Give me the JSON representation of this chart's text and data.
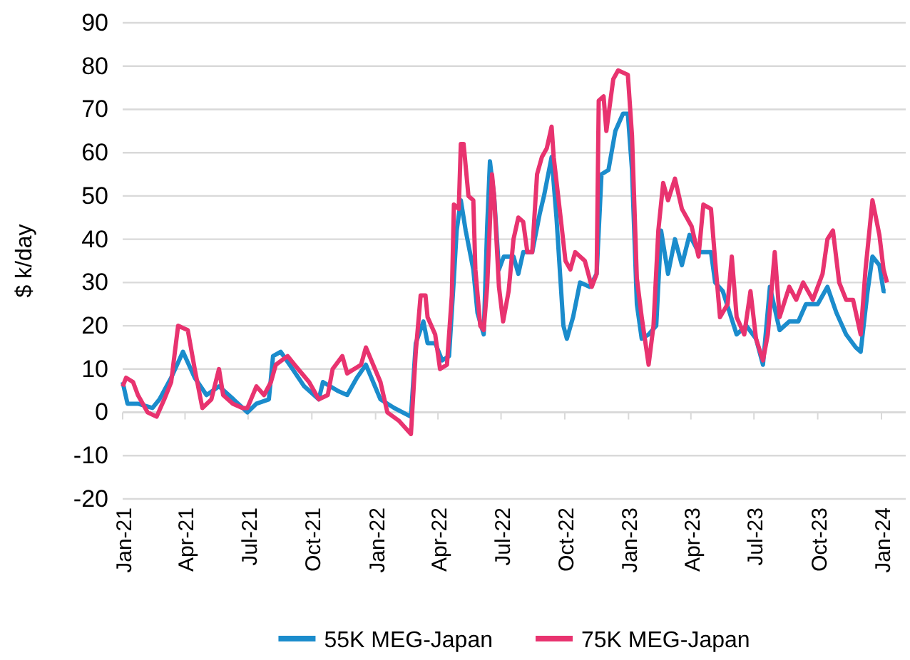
{
  "chart_data": {
    "type": "line",
    "ylabel": "$ k/day",
    "xlim": [
      "2021-01-01",
      "2024-02-05"
    ],
    "xticks": [
      {
        "value": "2021-01-01",
        "label": "Jan-21"
      },
      {
        "value": "2021-04-01",
        "label": "Apr-21"
      },
      {
        "value": "2021-07-01",
        "label": "Jul-21"
      },
      {
        "value": "2021-10-01",
        "label": "Oct-21"
      },
      {
        "value": "2022-01-01",
        "label": "Jan-22"
      },
      {
        "value": "2022-04-01",
        "label": "Apr-22"
      },
      {
        "value": "2022-07-01",
        "label": "Jul-22"
      },
      {
        "value": "2022-10-01",
        "label": "Oct-22"
      },
      {
        "value": "2023-01-01",
        "label": "Jan-23"
      },
      {
        "value": "2023-04-01",
        "label": "Apr-23"
      },
      {
        "value": "2023-07-01",
        "label": "Jul-23"
      },
      {
        "value": "2023-10-01",
        "label": "Oct-23"
      },
      {
        "value": "2024-01-01",
        "label": "Jan-24"
      }
    ],
    "ylim": [
      -20,
      90
    ],
    "yticks": [
      -20,
      -10,
      0,
      10,
      20,
      30,
      40,
      50,
      60,
      70,
      80,
      90
    ],
    "grid": "y",
    "legend": "bottom",
    "marker": "none",
    "line_style": "solid",
    "series": [
      {
        "name": "55K MEG-Japan",
        "color": "#1b8ccc",
        "x": [
          "2021-01-01",
          "2021-01-08",
          "2021-01-23",
          "2021-02-13",
          "2021-02-23",
          "2021-03-12",
          "2021-03-29",
          "2021-04-15",
          "2021-05-02",
          "2021-05-20",
          "2021-06-10",
          "2021-06-30",
          "2021-07-13",
          "2021-07-31",
          "2021-08-06",
          "2021-08-17",
          "2021-08-30",
          "2021-09-20",
          "2021-10-11",
          "2021-10-17",
          "2021-11-07",
          "2021-11-21",
          "2021-12-05",
          "2021-12-18",
          "2022-01-08",
          "2022-01-28",
          "2022-02-21",
          "2022-02-28",
          "2022-03-11",
          "2022-03-17",
          "2022-03-28",
          "2022-04-07",
          "2022-04-17",
          "2022-04-24",
          "2022-04-28",
          "2022-05-04",
          "2022-05-11",
          "2022-05-22",
          "2022-05-28",
          "2022-06-06",
          "2022-06-11",
          "2022-06-15",
          "2022-06-21",
          "2022-06-28",
          "2022-07-05",
          "2022-07-19",
          "2022-07-26",
          "2022-08-02",
          "2022-08-15",
          "2022-08-26",
          "2022-09-01",
          "2022-09-12",
          "2022-09-19",
          "2022-09-29",
          "2022-10-04",
          "2022-10-13",
          "2022-10-23",
          "2022-11-06",
          "2022-11-16",
          "2022-11-23",
          "2022-12-03",
          "2022-12-13",
          "2022-12-24",
          "2022-12-31",
          "2023-01-06",
          "2023-01-13",
          "2023-01-20",
          "2023-01-30",
          "2023-02-10",
          "2023-02-17",
          "2023-02-27",
          "2023-03-09",
          "2023-03-19",
          "2023-03-30",
          "2023-04-12",
          "2023-04-30",
          "2023-05-06",
          "2023-05-17",
          "2023-05-27",
          "2023-06-06",
          "2023-06-20",
          "2023-07-04",
          "2023-07-14",
          "2023-07-24",
          "2023-08-07",
          "2023-08-21",
          "2023-09-03",
          "2023-09-14",
          "2023-10-01",
          "2023-10-15",
          "2023-10-28",
          "2023-11-11",
          "2023-11-25",
          "2023-12-02",
          "2023-12-12",
          "2023-12-19",
          "2023-12-29",
          "2024-01-04",
          "2024-01-07"
        ],
        "values": [
          7,
          2,
          2,
          1,
          3,
          8,
          14,
          8,
          4,
          6,
          3,
          0,
          2,
          3,
          13,
          14,
          11,
          6,
          3,
          7,
          5,
          4,
          8,
          11,
          3,
          1,
          -1,
          16,
          21,
          16,
          16,
          12,
          13,
          31,
          42,
          49,
          42,
          33,
          23,
          18,
          43,
          58,
          50,
          33,
          36,
          36,
          32,
          37,
          37,
          46,
          50,
          59,
          45,
          20,
          17,
          22,
          30,
          29,
          32,
          55,
          56,
          65,
          69,
          69,
          56,
          25,
          17,
          18,
          20,
          42,
          32,
          40,
          34,
          41,
          37,
          37,
          30,
          28,
          23,
          18,
          20,
          17,
          11,
          29,
          19,
          21,
          21,
          25,
          25,
          29,
          23,
          18,
          15,
          14,
          28,
          36,
          34,
          28,
          28
        ]
      },
      {
        "name": "75K MEG-Japan",
        "color": "#e8336f",
        "x": [
          "2021-01-01",
          "2021-01-06",
          "2021-01-16",
          "2021-01-23",
          "2021-02-06",
          "2021-02-19",
          "2021-03-02",
          "2021-03-12",
          "2021-03-22",
          "2021-04-05",
          "2021-04-15",
          "2021-04-26",
          "2021-05-09",
          "2021-05-20",
          "2021-05-26",
          "2021-06-09",
          "2021-06-23",
          "2021-06-30",
          "2021-07-13",
          "2021-07-24",
          "2021-08-03",
          "2021-08-10",
          "2021-08-27",
          "2021-09-06",
          "2021-09-27",
          "2021-10-11",
          "2021-10-24",
          "2021-10-31",
          "2021-11-14",
          "2021-11-21",
          "2021-12-11",
          "2021-12-18",
          "2022-01-08",
          "2022-01-18",
          "2022-02-04",
          "2022-02-21",
          "2022-02-28",
          "2022-03-07",
          "2022-03-14",
          "2022-03-17",
          "2022-03-28",
          "2022-04-04",
          "2022-04-14",
          "2022-04-21",
          "2022-04-24",
          "2022-05-01",
          "2022-05-04",
          "2022-05-08",
          "2022-05-15",
          "2022-05-22",
          "2022-05-25",
          "2022-06-01",
          "2022-06-06",
          "2022-06-11",
          "2022-06-18",
          "2022-06-21",
          "2022-06-28",
          "2022-07-04",
          "2022-07-12",
          "2022-07-19",
          "2022-07-26",
          "2022-08-02",
          "2022-08-08",
          "2022-08-15",
          "2022-08-22",
          "2022-08-29",
          "2022-09-05",
          "2022-09-12",
          "2022-09-15",
          "2022-09-25",
          "2022-10-02",
          "2022-10-09",
          "2022-10-16",
          "2022-10-30",
          "2022-11-09",
          "2022-11-16",
          "2022-11-19",
          "2022-11-26",
          "2022-11-30",
          "2022-12-10",
          "2022-12-17",
          "2022-12-31",
          "2023-01-06",
          "2023-01-13",
          "2023-01-20",
          "2023-01-30",
          "2023-02-06",
          "2023-02-13",
          "2023-02-20",
          "2023-02-27",
          "2023-03-09",
          "2023-03-19",
          "2023-04-02",
          "2023-04-12",
          "2023-04-19",
          "2023-04-30",
          "2023-05-06",
          "2023-05-13",
          "2023-05-24",
          "2023-05-30",
          "2023-06-06",
          "2023-06-17",
          "2023-06-26",
          "2023-07-04",
          "2023-07-14",
          "2023-07-21",
          "2023-07-31",
          "2023-08-07",
          "2023-08-21",
          "2023-08-31",
          "2023-09-10",
          "2023-09-24",
          "2023-10-08",
          "2023-10-15",
          "2023-10-23",
          "2023-11-01",
          "2023-11-11",
          "2023-11-21",
          "2023-12-02",
          "2023-12-09",
          "2023-12-19",
          "2023-12-29",
          "2024-01-04",
          "2024-01-09"
        ],
        "values": [
          6,
          8,
          7,
          4,
          0,
          -1,
          3,
          7,
          20,
          19,
          10,
          1,
          3,
          10,
          4,
          2,
          1,
          1,
          6,
          4,
          7,
          11,
          13,
          11,
          7,
          3,
          4,
          10,
          13,
          9,
          11,
          15,
          7,
          0,
          -2,
          -5,
          14,
          27,
          27,
          22,
          18,
          10,
          11,
          27,
          48,
          47,
          62,
          62,
          50,
          49,
          33,
          20,
          19,
          29,
          55,
          50,
          29,
          21,
          28,
          40,
          45,
          44,
          37,
          37,
          55,
          59,
          61,
          66,
          59,
          45,
          35,
          33,
          37,
          35,
          29,
          32,
          72,
          73,
          65,
          77,
          79,
          78,
          64,
          31,
          22,
          11,
          20,
          42,
          53,
          49,
          54,
          47,
          43,
          36,
          48,
          47,
          35,
          22,
          25,
          36,
          22,
          18,
          28,
          17,
          12,
          18,
          37,
          22,
          29,
          26,
          30,
          26,
          32,
          40,
          42,
          30,
          26,
          26,
          18,
          33,
          49,
          41,
          33,
          30
        ]
      }
    ]
  }
}
